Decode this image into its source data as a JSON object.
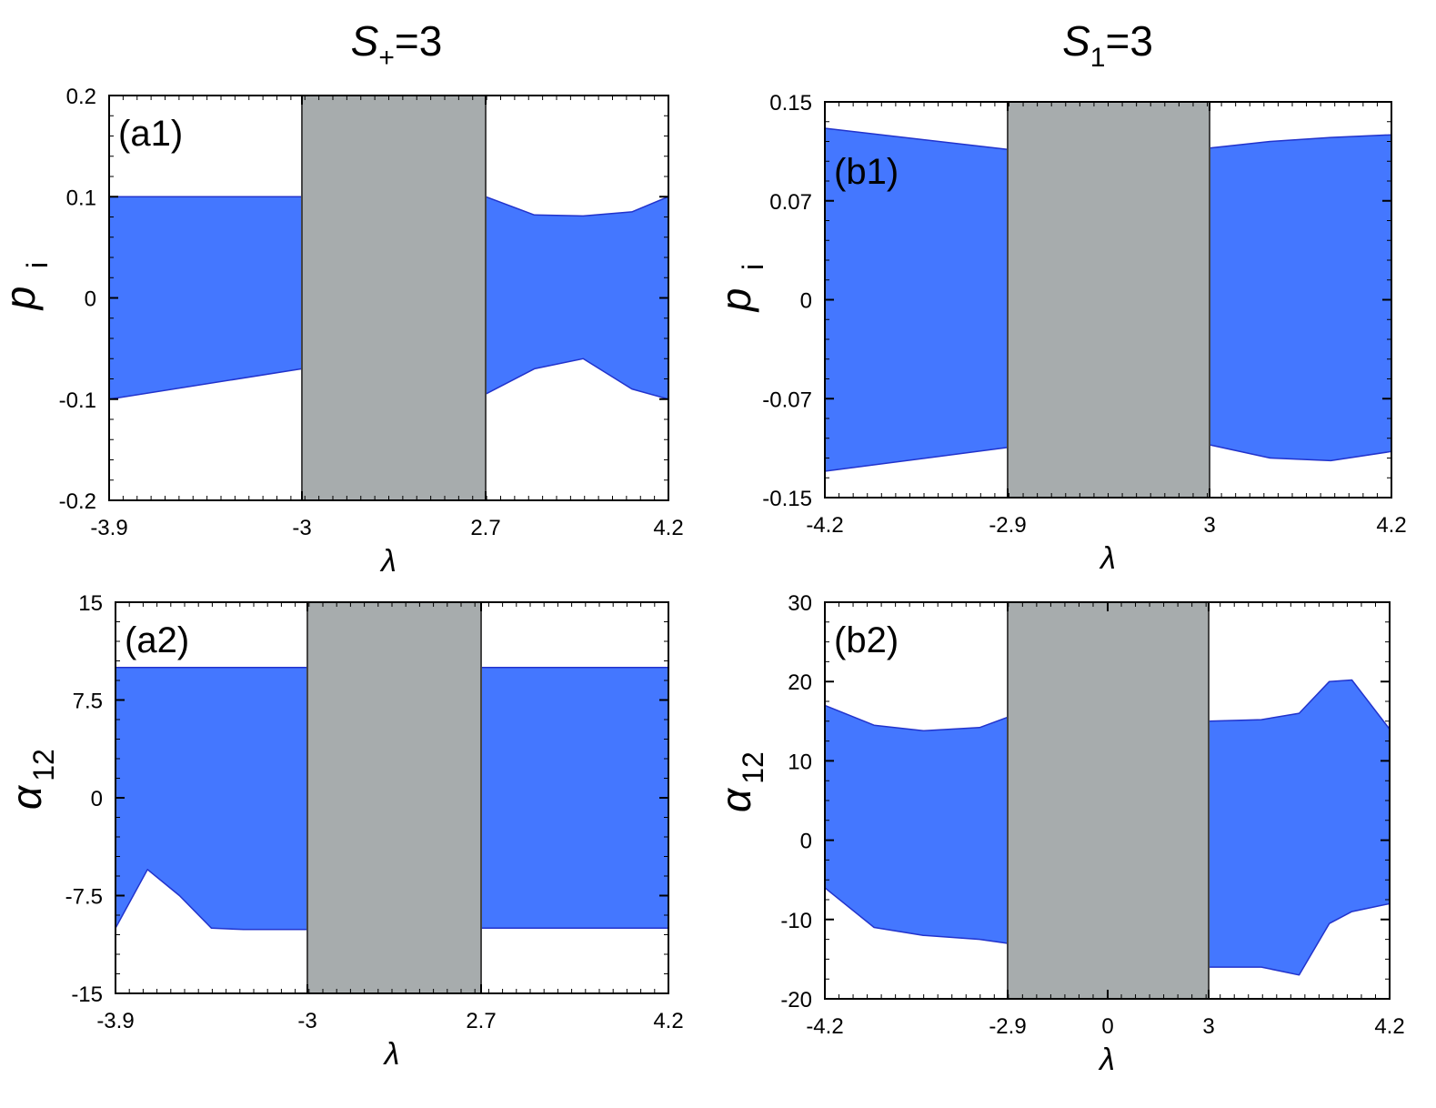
{
  "titles": {
    "left": {
      "sym": "S",
      "sub": "+",
      "rest": "=3"
    },
    "right": {
      "sym": "S",
      "sub": "1",
      "rest": "=3"
    }
  },
  "colors": {
    "band": "#4477ff",
    "band_edge": "#2233cc",
    "gap": "#a7acad",
    "axis": "#000000"
  },
  "chart_data": [
    {
      "id": "a1",
      "type": "area",
      "label": "(a1)",
      "xlabel": "λ",
      "ylabel": "p",
      "ylabel_sub": "i",
      "x_ticks": [
        "-3.9",
        "-3",
        "2.7",
        "4.2"
      ],
      "y_ticks": [
        "0.2",
        "0.1",
        "0",
        "-0.1",
        "-0.2"
      ],
      "ylim": [
        -0.2,
        0.2
      ],
      "gap": [
        -3,
        2.7
      ],
      "bands": [
        {
          "x": [
            -3.9,
            -3
          ],
          "upper": [
            0.1,
            0.1
          ],
          "lower": [
            -0.1,
            -0.07
          ]
        },
        {
          "x": [
            2.7,
            3.1,
            3.5,
            3.9,
            4.2
          ],
          "upper": [
            0.1,
            0.082,
            0.081,
            0.085,
            0.1
          ],
          "lower": [
            -0.095,
            -0.07,
            -0.06,
            -0.09,
            -0.1
          ]
        }
      ]
    },
    {
      "id": "b1",
      "type": "area",
      "label": "(b1)",
      "xlabel": "λ",
      "ylabel": "p",
      "ylabel_sub": "i",
      "x_ticks": [
        "-4.2",
        "-2.9",
        "3",
        "4.2"
      ],
      "y_ticks": [
        "0.15",
        "0.07",
        "0",
        "-0.07",
        "-0.15"
      ],
      "ylim": [
        -0.15,
        0.15
      ],
      "gap": [
        -2.9,
        3
      ],
      "bands": [
        {
          "x": [
            -4.2,
            -2.9
          ],
          "upper": [
            0.13,
            0.114
          ],
          "lower": [
            -0.13,
            -0.112
          ]
        },
        {
          "x": [
            3,
            3.4,
            3.8,
            4.2
          ],
          "upper": [
            0.115,
            0.12,
            0.123,
            0.125
          ],
          "lower": [
            -0.11,
            -0.12,
            -0.122,
            -0.115
          ]
        }
      ]
    },
    {
      "id": "a2",
      "type": "area",
      "label": "(a2)",
      "xlabel": "λ",
      "ylabel": "α",
      "ylabel_sub": "12",
      "x_ticks": [
        "-3.9",
        "-3",
        "2.7",
        "4.2"
      ],
      "y_ticks": [
        "15",
        "7.5",
        "0",
        "-7.5",
        "-15"
      ],
      "ylim": [
        -15,
        15
      ],
      "gap": [
        -3,
        2.7
      ],
      "bands": [
        {
          "x": [
            -3.9,
            -3.75,
            -3.6,
            -3.45,
            -3.3,
            -3
          ],
          "upper": [
            10,
            10,
            10,
            10,
            10,
            10
          ],
          "lower": [
            -10,
            -5.5,
            -7.5,
            -10,
            -10.1,
            -10.1
          ]
        },
        {
          "x": [
            2.7,
            4.2
          ],
          "upper": [
            10,
            10
          ],
          "lower": [
            -10,
            -10
          ]
        }
      ]
    },
    {
      "id": "b2",
      "type": "area",
      "label": "(b2)",
      "xlabel": "λ",
      "ylabel": "α",
      "ylabel_sub": "12",
      "x_ticks": [
        "-4.2",
        "-2.9",
        "0",
        "3",
        "4.2"
      ],
      "y_ticks": [
        "30",
        "20",
        "10",
        "0",
        "-10",
        "-20"
      ],
      "ylim": [
        -20,
        30
      ],
      "gap": [
        -2.9,
        3
      ],
      "bands": [
        {
          "x": [
            -4.2,
            -3.85,
            -3.5,
            -3.1,
            -2.9
          ],
          "upper": [
            17,
            14.5,
            13.8,
            14.2,
            15.5
          ],
          "lower": [
            -6,
            -11,
            -12,
            -12.5,
            -13
          ]
        },
        {
          "x": [
            3,
            3.35,
            3.6,
            3.8,
            3.95,
            4.2
          ],
          "upper": [
            15,
            15.2,
            16,
            20,
            20.2,
            14
          ],
          "lower": [
            -16,
            -16,
            -17,
            -10.5,
            -9,
            -8
          ]
        }
      ]
    }
  ]
}
